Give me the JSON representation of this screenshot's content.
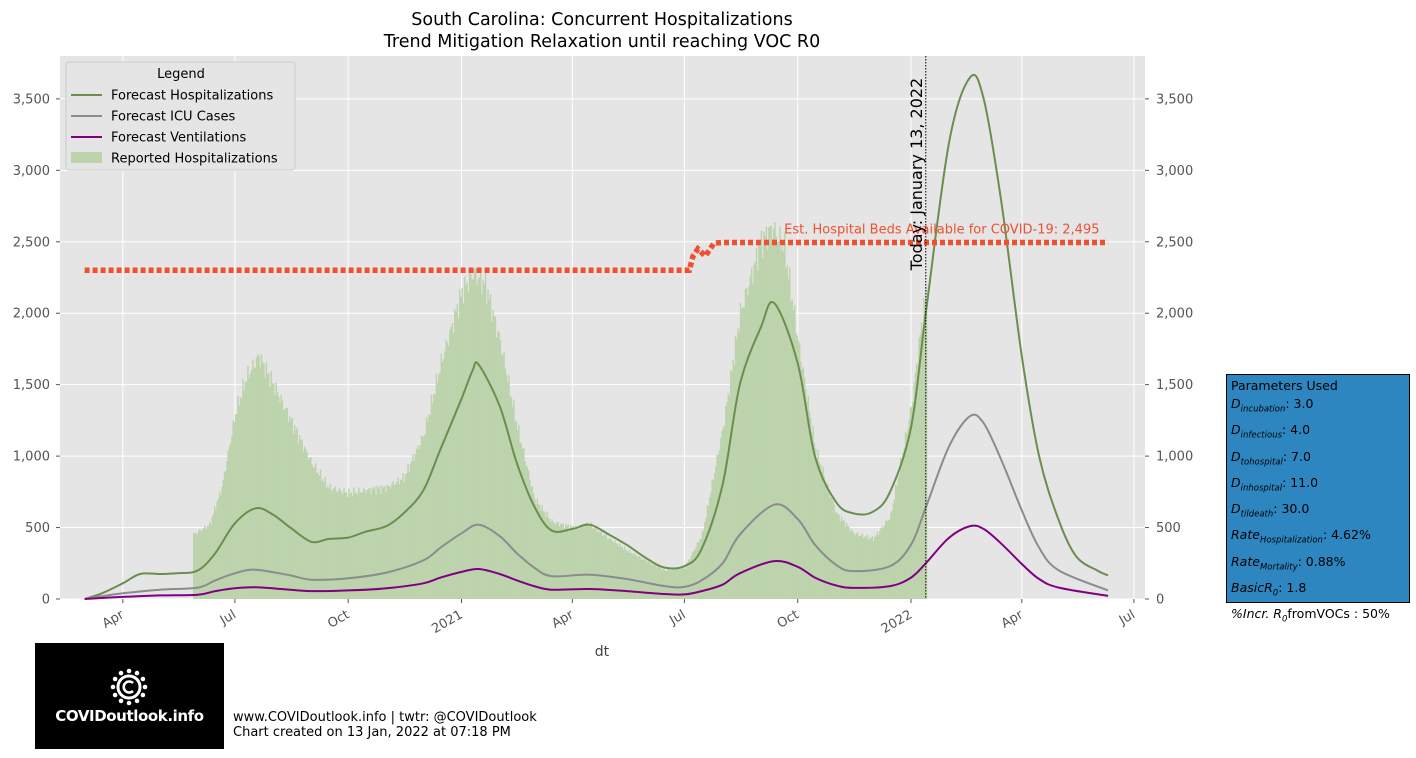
{
  "chart_data": {
    "type": "line",
    "title": "South Carolina: Concurrent Hospitalizations",
    "subtitle": "Trend Mitigation Relaxation until reaching VOC R0",
    "xlabel": "dt",
    "ylabel": "",
    "ylim": [
      0,
      3800
    ],
    "xlim": [
      "2020-02-10",
      "2022-07-10"
    ],
    "x_ticks": [
      {
        "date": "2020-04-01",
        "label": "Apr"
      },
      {
        "date": "2020-07-01",
        "label": "Jul"
      },
      {
        "date": "2020-10-01",
        "label": "Oct"
      },
      {
        "date": "2021-01-01",
        "label": "2021"
      },
      {
        "date": "2021-04-01",
        "label": "Apr"
      },
      {
        "date": "2021-07-01",
        "label": "Jul"
      },
      {
        "date": "2021-10-01",
        "label": "Oct"
      },
      {
        "date": "2022-01-01",
        "label": "2022"
      },
      {
        "date": "2022-04-01",
        "label": "Apr"
      },
      {
        "date": "2022-07-01",
        "label": "Jul"
      }
    ],
    "y_ticks": [
      0,
      500,
      1000,
      1500,
      2000,
      2500,
      3000,
      3500
    ],
    "y_tick_labels": [
      "0",
      "500",
      "1,000",
      "1,500",
      "2,000",
      "2,500",
      "3,000",
      "3,500"
    ],
    "grid": true,
    "legend": {
      "title": "Legend",
      "position": "top-left"
    },
    "series": [
      {
        "name": "Forecast Hospitalizations",
        "style": "line",
        "color": "#6b8e4e",
        "points": [
          [
            "2020-03-01",
            0
          ],
          [
            "2020-03-15",
            40
          ],
          [
            "2020-04-01",
            110
          ],
          [
            "2020-04-15",
            175
          ],
          [
            "2020-05-01",
            175
          ],
          [
            "2020-05-15",
            180
          ],
          [
            "2020-06-01",
            200
          ],
          [
            "2020-06-15",
            320
          ],
          [
            "2020-07-01",
            530
          ],
          [
            "2020-07-18",
            635
          ],
          [
            "2020-08-01",
            590
          ],
          [
            "2020-08-15",
            500
          ],
          [
            "2020-09-01",
            400
          ],
          [
            "2020-09-15",
            420
          ],
          [
            "2020-10-01",
            430
          ],
          [
            "2020-10-15",
            470
          ],
          [
            "2020-11-01",
            510
          ],
          [
            "2020-11-15",
            600
          ],
          [
            "2020-12-01",
            760
          ],
          [
            "2020-12-15",
            1050
          ],
          [
            "2021-01-01",
            1400
          ],
          [
            "2021-01-10",
            1600
          ],
          [
            "2021-01-15",
            1640
          ],
          [
            "2021-02-01",
            1350
          ],
          [
            "2021-02-15",
            950
          ],
          [
            "2021-03-01",
            650
          ],
          [
            "2021-03-15",
            480
          ],
          [
            "2021-04-01",
            490
          ],
          [
            "2021-04-15",
            520
          ],
          [
            "2021-05-01",
            450
          ],
          [
            "2021-05-15",
            380
          ],
          [
            "2021-06-01",
            280
          ],
          [
            "2021-06-15",
            220
          ],
          [
            "2021-07-01",
            230
          ],
          [
            "2021-07-15",
            350
          ],
          [
            "2021-08-01",
            800
          ],
          [
            "2021-08-15",
            1500
          ],
          [
            "2021-09-01",
            1900
          ],
          [
            "2021-09-12",
            2070
          ],
          [
            "2021-10-01",
            1650
          ],
          [
            "2021-10-15",
            1000
          ],
          [
            "2021-11-01",
            680
          ],
          [
            "2021-11-15",
            600
          ],
          [
            "2021-12-01",
            610
          ],
          [
            "2021-12-15",
            750
          ],
          [
            "2022-01-01",
            1200
          ],
          [
            "2022-01-13",
            2000
          ],
          [
            "2022-02-01",
            3200
          ],
          [
            "2022-02-18",
            3650
          ],
          [
            "2022-03-01",
            3500
          ],
          [
            "2022-03-15",
            2800
          ],
          [
            "2022-04-01",
            1700
          ],
          [
            "2022-04-15",
            1000
          ],
          [
            "2022-05-01",
            550
          ],
          [
            "2022-05-15",
            300
          ],
          [
            "2022-06-01",
            200
          ],
          [
            "2022-06-10",
            165
          ]
        ]
      },
      {
        "name": "Forecast ICU Cases",
        "style": "line",
        "color": "#8c8c8c",
        "points": [
          [
            "2020-03-01",
            0
          ],
          [
            "2020-04-01",
            40
          ],
          [
            "2020-05-01",
            65
          ],
          [
            "2020-06-01",
            80
          ],
          [
            "2020-06-15",
            130
          ],
          [
            "2020-07-01",
            180
          ],
          [
            "2020-07-18",
            205
          ],
          [
            "2020-08-15",
            165
          ],
          [
            "2020-09-01",
            135
          ],
          [
            "2020-10-01",
            145
          ],
          [
            "2020-11-01",
            185
          ],
          [
            "2020-12-01",
            270
          ],
          [
            "2020-12-15",
            360
          ],
          [
            "2021-01-01",
            460
          ],
          [
            "2021-01-15",
            520
          ],
          [
            "2021-02-01",
            440
          ],
          [
            "2021-02-15",
            320
          ],
          [
            "2021-03-01",
            220
          ],
          [
            "2021-03-15",
            160
          ],
          [
            "2021-04-15",
            170
          ],
          [
            "2021-05-15",
            140
          ],
          [
            "2021-06-15",
            90
          ],
          [
            "2021-07-01",
            85
          ],
          [
            "2021-07-15",
            130
          ],
          [
            "2021-08-01",
            250
          ],
          [
            "2021-08-15",
            450
          ],
          [
            "2021-09-12",
            660
          ],
          [
            "2021-10-01",
            560
          ],
          [
            "2021-10-15",
            380
          ],
          [
            "2021-11-01",
            240
          ],
          [
            "2021-11-15",
            195
          ],
          [
            "2021-12-15",
            230
          ],
          [
            "2022-01-01",
            380
          ],
          [
            "2022-01-13",
            640
          ],
          [
            "2022-02-01",
            1070
          ],
          [
            "2022-02-18",
            1280
          ],
          [
            "2022-03-01",
            1230
          ],
          [
            "2022-03-15",
            980
          ],
          [
            "2022-04-01",
            620
          ],
          [
            "2022-04-15",
            360
          ],
          [
            "2022-05-01",
            200
          ],
          [
            "2022-06-10",
            60
          ]
        ]
      },
      {
        "name": "Forecast Ventilations",
        "style": "line",
        "color": "#800080",
        "points": [
          [
            "2020-03-01",
            0
          ],
          [
            "2020-04-01",
            15
          ],
          [
            "2020-05-01",
            25
          ],
          [
            "2020-06-01",
            30
          ],
          [
            "2020-06-15",
            55
          ],
          [
            "2020-07-01",
            75
          ],
          [
            "2020-07-18",
            82
          ],
          [
            "2020-08-15",
            65
          ],
          [
            "2020-09-01",
            55
          ],
          [
            "2020-10-01",
            60
          ],
          [
            "2020-11-01",
            75
          ],
          [
            "2020-12-01",
            110
          ],
          [
            "2020-12-15",
            150
          ],
          [
            "2021-01-01",
            190
          ],
          [
            "2021-01-15",
            210
          ],
          [
            "2021-02-01",
            175
          ],
          [
            "2021-02-15",
            130
          ],
          [
            "2021-03-01",
            90
          ],
          [
            "2021-03-15",
            65
          ],
          [
            "2021-04-15",
            70
          ],
          [
            "2021-05-15",
            55
          ],
          [
            "2021-06-15",
            35
          ],
          [
            "2021-07-01",
            32
          ],
          [
            "2021-07-15",
            55
          ],
          [
            "2021-08-01",
            100
          ],
          [
            "2021-08-15",
            180
          ],
          [
            "2021-09-12",
            265
          ],
          [
            "2021-10-01",
            225
          ],
          [
            "2021-10-15",
            150
          ],
          [
            "2021-11-01",
            95
          ],
          [
            "2021-11-15",
            78
          ],
          [
            "2021-12-15",
            90
          ],
          [
            "2022-01-01",
            150
          ],
          [
            "2022-01-13",
            250
          ],
          [
            "2022-02-01",
            430
          ],
          [
            "2022-02-18",
            510
          ],
          [
            "2022-03-01",
            490
          ],
          [
            "2022-03-15",
            390
          ],
          [
            "2022-04-01",
            245
          ],
          [
            "2022-04-15",
            140
          ],
          [
            "2022-05-01",
            80
          ],
          [
            "2022-06-10",
            22
          ]
        ]
      },
      {
        "name": "Reported Hospitalizations",
        "style": "bars",
        "color": "#bcd3ac",
        "points": [
          [
            "2020-05-28",
            450
          ],
          [
            "2020-06-10",
            520
          ],
          [
            "2020-06-20",
            780
          ],
          [
            "2020-07-01",
            1300
          ],
          [
            "2020-07-10",
            1550
          ],
          [
            "2020-07-20",
            1700
          ],
          [
            "2020-08-01",
            1500
          ],
          [
            "2020-08-15",
            1250
          ],
          [
            "2020-09-01",
            950
          ],
          [
            "2020-09-15",
            780
          ],
          [
            "2020-10-01",
            740
          ],
          [
            "2020-10-15",
            760
          ],
          [
            "2020-11-01",
            780
          ],
          [
            "2020-11-15",
            850
          ],
          [
            "2020-12-01",
            1150
          ],
          [
            "2020-12-15",
            1650
          ],
          [
            "2021-01-01",
            2150
          ],
          [
            "2021-01-10",
            2280
          ],
          [
            "2021-01-20",
            2200
          ],
          [
            "2021-02-01",
            1800
          ],
          [
            "2021-02-15",
            1200
          ],
          [
            "2021-03-01",
            700
          ],
          [
            "2021-03-15",
            540
          ],
          [
            "2021-04-01",
            500
          ],
          [
            "2021-04-15",
            520
          ],
          [
            "2021-05-01",
            420
          ],
          [
            "2021-05-15",
            340
          ],
          [
            "2021-06-01",
            260
          ],
          [
            "2021-06-15",
            200
          ],
          [
            "2021-07-01",
            220
          ],
          [
            "2021-07-15",
            450
          ],
          [
            "2021-08-01",
            1200
          ],
          [
            "2021-08-15",
            2000
          ],
          [
            "2021-09-01",
            2500
          ],
          [
            "2021-09-10",
            2600
          ],
          [
            "2021-09-20",
            2450
          ],
          [
            "2021-10-01",
            1800
          ],
          [
            "2021-10-15",
            1050
          ],
          [
            "2021-11-01",
            600
          ],
          [
            "2021-11-15",
            460
          ],
          [
            "2021-12-01",
            420
          ],
          [
            "2021-12-15",
            580
          ],
          [
            "2022-01-01",
            1350
          ],
          [
            "2022-01-08",
            1850
          ],
          [
            "2022-01-13",
            2150
          ]
        ]
      },
      {
        "name": "",
        "style": "dotted",
        "color": "#f05030",
        "points": [
          [
            "2020-03-01",
            2300
          ],
          [
            "2021-07-05",
            2300
          ],
          [
            "2021-07-08",
            2400
          ],
          [
            "2021-07-12",
            2450
          ],
          [
            "2021-07-18",
            2400
          ],
          [
            "2021-07-25",
            2490
          ],
          [
            "2021-08-01",
            2495
          ],
          [
            "2022-06-10",
            2495
          ]
        ]
      }
    ],
    "annotations": [
      {
        "text": "Est. Hospital Beds Available for COVID-19: 2,495",
        "date": "2021-09-20",
        "value": 2495
      },
      {
        "text": "Today: January 13, 2022",
        "date": "2022-01-13"
      }
    ]
  },
  "params_panel": {
    "title": "Parameters Used",
    "rows": [
      {
        "sym": "D",
        "sub": "incubation",
        "val": ": 3.0"
      },
      {
        "sym": "D",
        "sub": "infectious",
        "val": ": 4.0"
      },
      {
        "sym": "D",
        "sub": "tohospital",
        "val": ": 7.0"
      },
      {
        "sym": "D",
        "sub": "inhospital",
        "val": ": 11.0"
      },
      {
        "sym": "D",
        "sub": "tildeath",
        "val": ": 30.0"
      },
      {
        "sym": "Rate",
        "sub": "Hospitalization",
        "val": ": 4.62%"
      },
      {
        "sym": "Rate",
        "sub": "Mortality",
        "val": ": 0.88%"
      },
      {
        "sym": "BasicR",
        "sub": "0",
        "val": ": 1.8"
      },
      {
        "sym": "%Incr. R",
        "sub": "0",
        "val": "fromVOCs : 50%"
      }
    ]
  },
  "logo": {
    "text": "COVIDoutlook.info"
  },
  "footer": {
    "line1": "www.COVIDoutlook.info | twtr: @COVIDoutlook",
    "line2": "Chart created on 13 Jan, 2022 at 07:18 PM"
  }
}
